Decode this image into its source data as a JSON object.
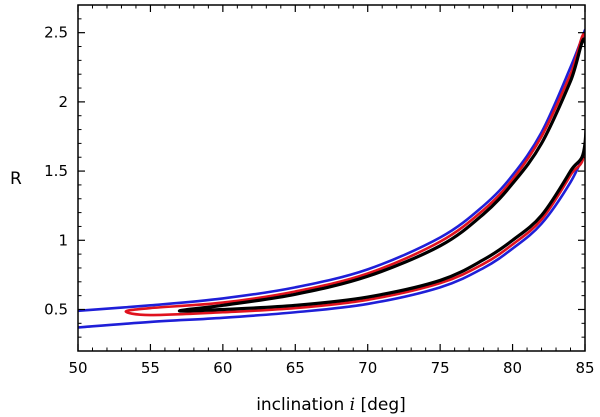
{
  "chart_data": {
    "type": "line",
    "title": "",
    "xlabel_prefix": "inclination ",
    "xlabel_symbol": "i",
    "xlabel_suffix": " [deg]",
    "ylabel": "R",
    "xlim": [
      50,
      85
    ],
    "ylim": [
      0.2,
      2.7
    ],
    "xticks": [
      50,
      55,
      60,
      65,
      70,
      75,
      80,
      85
    ],
    "yticks": [
      0.5,
      1,
      1.5,
      2,
      2.5
    ],
    "ytick_labels": [
      "0.5",
      "1",
      "1.5",
      "2",
      "2.5"
    ],
    "grid": false,
    "series": [
      {
        "name": "blue-contour",
        "color": "#1f1fd8",
        "closed": false,
        "segments": [
          {
            "x": [
              50,
              55,
              60,
              65,
              70,
              75,
              78,
              80,
              82,
              84,
              85
            ],
            "y": [
              0.49,
              0.53,
              0.58,
              0.66,
              0.79,
              1.02,
              1.25,
              1.47,
              1.78,
              2.25,
              2.52
            ]
          },
          {
            "x": [
              50,
              55,
              60,
              65,
              70,
              75,
              78,
              80,
              82,
              84,
              85
            ],
            "y": [
              0.37,
              0.41,
              0.44,
              0.48,
              0.54,
              0.66,
              0.8,
              0.94,
              1.12,
              1.42,
              1.64
            ]
          }
        ]
      },
      {
        "name": "red-contour",
        "color": "#e0121e",
        "closed": true,
        "segments": [
          {
            "x": [
              53.3,
              55,
              60,
              65,
              70,
              75,
              78,
              80,
              82,
              84,
              85,
              85,
              84,
              82,
              80,
              78,
              75,
              70,
              65,
              60,
              55,
              53.3
            ],
            "y": [
              0.485,
              0.51,
              0.55,
              0.63,
              0.76,
              0.99,
              1.22,
              1.44,
              1.75,
              2.2,
              2.47,
              1.67,
              1.47,
              1.15,
              0.97,
              0.83,
              0.69,
              0.57,
              0.51,
              0.48,
              0.46,
              0.485
            ]
          }
        ]
      },
      {
        "name": "black-contour",
        "color": "#000000",
        "closed": true,
        "segments": [
          {
            "x": [
              57.0,
              60,
              65,
              70,
              75,
              78,
              80,
              82,
              84,
              85,
              85,
              84,
              82,
              80,
              78,
              75,
              70,
              65,
              60,
              57.0
            ],
            "y": [
              0.49,
              0.53,
              0.61,
              0.74,
              0.96,
              1.19,
              1.41,
              1.7,
              2.15,
              2.44,
              1.7,
              1.5,
              1.18,
              1.0,
              0.86,
              0.71,
              0.59,
              0.53,
              0.5,
              0.49
            ]
          }
        ]
      }
    ]
  }
}
